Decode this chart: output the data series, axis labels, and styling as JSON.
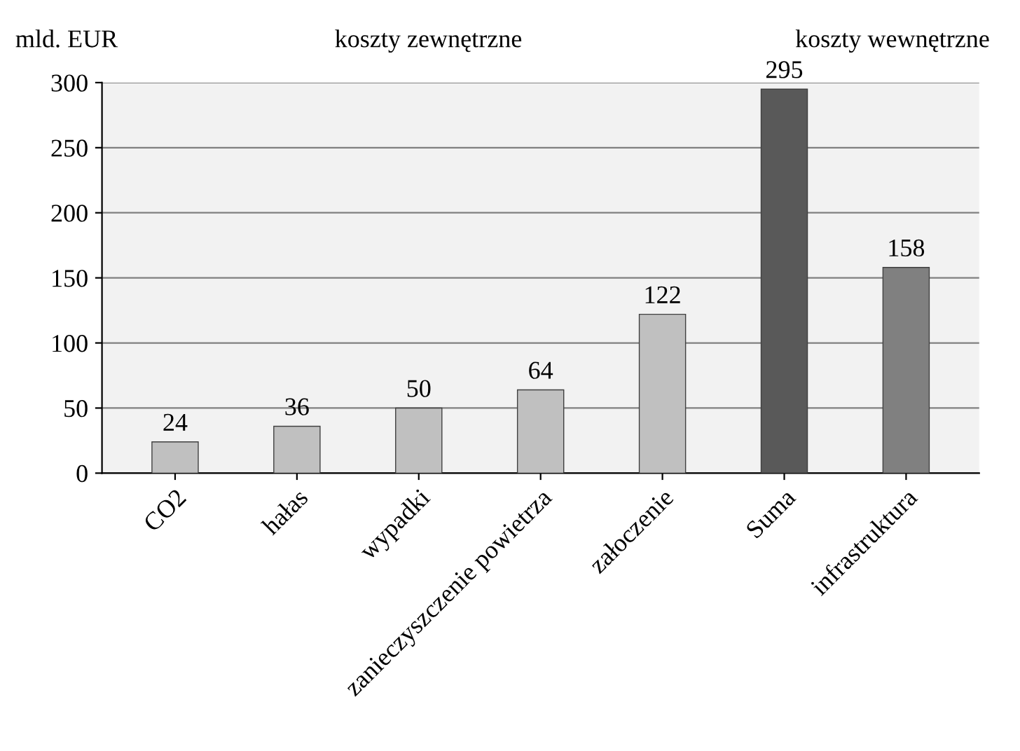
{
  "chart_data": {
    "type": "bar",
    "ylabel": "mld. EUR",
    "categories": [
      "CO2",
      "hałas",
      "wypadki",
      "zanieczyszczenie powietrza",
      "załoczenie",
      "Suma",
      "infrastruktura"
    ],
    "values": [
      24,
      36,
      50,
      64,
      122,
      295,
      158
    ],
    "colors": [
      "#c0c0c0",
      "#c0c0c0",
      "#c0c0c0",
      "#c0c0c0",
      "#c0c0c0",
      "#595959",
      "#808080"
    ],
    "ylim": [
      0,
      300
    ],
    "yticks": [
      0,
      50,
      100,
      150,
      200,
      250,
      300
    ],
    "grid": "y",
    "data_labels": true,
    "annotations": [
      "koszty zewnętrzne",
      "koszty wewnętrzne"
    ]
  }
}
